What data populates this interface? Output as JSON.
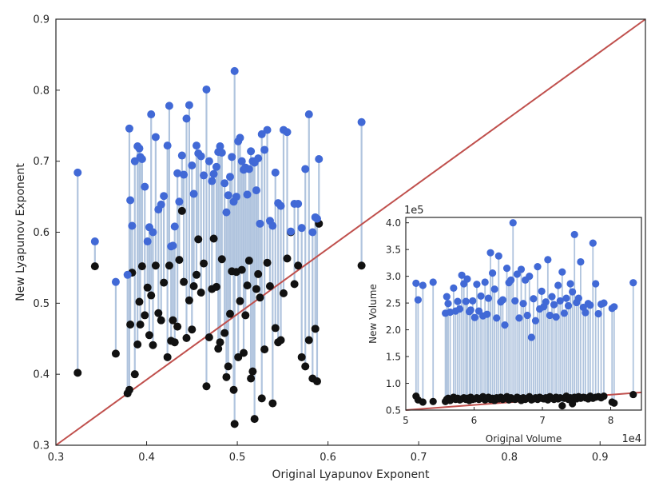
{
  "colors": {
    "new_point": "#4169d6",
    "orig_point": "#111111",
    "stem": "#b0c4de",
    "diagonal": "#c0504d",
    "axis": "#262626"
  },
  "chart_data": [
    {
      "type": "scatter",
      "name": "main",
      "title": "",
      "xlabel": "Original Lyapunov Exponent",
      "ylabel": "New Lyapunov Exponent",
      "xlim": [
        0.3,
        0.95
      ],
      "ylim": [
        0.3,
        0.9
      ],
      "xticks": [
        "0.3",
        "0.4",
        "0.5",
        "0.6",
        "0.7",
        "0.8",
        "0.9"
      ],
      "yticks": [
        "0.3",
        "0.4",
        "0.5",
        "0.6",
        "0.7",
        "0.8",
        "0.9"
      ],
      "xtick_values": [
        0.3,
        0.4,
        0.5,
        0.6,
        0.7,
        0.8,
        0.9
      ],
      "ytick_values": [
        0.3,
        0.4,
        0.5,
        0.6,
        0.7,
        0.8,
        0.9
      ],
      "diagonal": [
        [
          0.3,
          0.3
        ],
        [
          0.95,
          0.9
        ]
      ],
      "series": [
        {
          "name": "Original",
          "color": "#111111"
        },
        {
          "name": "New",
          "color": "#4169d6"
        }
      ],
      "x": [
        0.324,
        0.343,
        0.366,
        0.379,
        0.381,
        0.382,
        0.384,
        0.387,
        0.39,
        0.392,
        0.393,
        0.395,
        0.398,
        0.401,
        0.403,
        0.405,
        0.407,
        0.41,
        0.413,
        0.416,
        0.419,
        0.423,
        0.425,
        0.427,
        0.429,
        0.431,
        0.434,
        0.436,
        0.439,
        0.441,
        0.444,
        0.447,
        0.45,
        0.452,
        0.455,
        0.457,
        0.46,
        0.463,
        0.466,
        0.469,
        0.472,
        0.474,
        0.477,
        0.479,
        0.481,
        0.483,
        0.486,
        0.488,
        0.49,
        0.492,
        0.494,
        0.496,
        0.497,
        0.499,
        0.501,
        0.503,
        0.505,
        0.507,
        0.509,
        0.511,
        0.513,
        0.515,
        0.517,
        0.519,
        0.521,
        0.523,
        0.525,
        0.527,
        0.53,
        0.533,
        0.536,
        0.539,
        0.542,
        0.545,
        0.548,
        0.551,
        0.555,
        0.559,
        0.563,
        0.567,
        0.571,
        0.575,
        0.579,
        0.583,
        0.586,
        0.588,
        0.59,
        0.637
      ],
      "y_original": [
        0.402,
        0.552,
        0.429,
        0.373,
        0.378,
        0.47,
        0.543,
        0.4,
        0.442,
        0.502,
        0.47,
        0.552,
        0.483,
        0.522,
        0.455,
        0.511,
        0.441,
        0.553,
        0.486,
        0.476,
        0.529,
        0.424,
        0.553,
        0.447,
        0.476,
        0.445,
        0.467,
        0.561,
        0.63,
        0.53,
        0.451,
        0.504,
        0.463,
        0.524,
        0.54,
        0.59,
        0.515,
        0.556,
        0.383,
        0.452,
        0.52,
        0.591,
        0.523,
        0.436,
        0.445,
        0.562,
        0.458,
        0.396,
        0.411,
        0.485,
        0.545,
        0.378,
        0.33,
        0.544,
        0.424,
        0.503,
        0.547,
        0.43,
        0.483,
        0.525,
        0.56,
        0.394,
        0.404,
        0.337,
        0.52,
        0.541,
        0.508,
        0.366,
        0.435,
        0.557,
        0.524,
        0.359,
        0.465,
        0.445,
        0.448,
        0.514,
        0.563,
        0.6,
        0.527,
        0.553,
        0.424,
        0.411,
        0.448,
        0.394,
        0.464,
        0.39,
        0.612,
        0.553
      ],
      "y_new": [
        0.684,
        0.587,
        0.53,
        0.54,
        0.746,
        0.645,
        0.609,
        0.7,
        0.721,
        0.718,
        0.706,
        0.703,
        0.664,
        0.587,
        0.607,
        0.766,
        0.6,
        0.734,
        0.632,
        0.639,
        0.651,
        0.722,
        0.778,
        0.58,
        0.581,
        0.608,
        0.683,
        0.643,
        0.708,
        0.681,
        0.76,
        0.779,
        0.694,
        0.654,
        0.722,
        0.711,
        0.707,
        0.68,
        0.801,
        0.7,
        0.672,
        0.682,
        0.692,
        0.713,
        0.721,
        0.712,
        0.669,
        0.628,
        0.652,
        0.678,
        0.706,
        0.643,
        0.827,
        0.65,
        0.728,
        0.733,
        0.7,
        0.688,
        0.691,
        0.653,
        0.689,
        0.714,
        0.7,
        0.698,
        0.659,
        0.704,
        0.612,
        0.738,
        0.716,
        0.744,
        0.616,
        0.609,
        0.684,
        0.641,
        0.637,
        0.744,
        0.741,
        0.601,
        0.64,
        0.64,
        0.606,
        0.689,
        0.766,
        0.6,
        0.621,
        0.619,
        0.703,
        0.755
      ]
    },
    {
      "type": "scatter",
      "name": "inset",
      "title": "",
      "xlabel": "Original Volume",
      "ylabel": "New Volume",
      "x_multiplier": "1e4",
      "y_multiplier": "1e5",
      "xlim": [
        5.0,
        8.45
      ],
      "ylim": [
        0.5,
        4.1
      ],
      "xticks": [
        "5",
        "6",
        "7",
        "8"
      ],
      "yticks": [
        "0.5",
        "1.0",
        "1.5",
        "2.0",
        "2.5",
        "3.0",
        "3.5",
        "4.0"
      ],
      "xtick_values": [
        5,
        6,
        7,
        8
      ],
      "ytick_values": [
        0.5,
        1.0,
        1.5,
        2.0,
        2.5,
        3.0,
        3.5,
        4.0
      ],
      "trend": [
        [
          5.0,
          0.5
        ],
        [
          8.45,
          0.83
        ]
      ],
      "x": [
        5.15,
        5.18,
        5.25,
        5.4,
        5.58,
        5.6,
        5.62,
        5.65,
        5.7,
        5.73,
        5.76,
        5.79,
        5.82,
        5.85,
        5.88,
        5.9,
        5.93,
        5.95,
        5.98,
        6.01,
        6.04,
        6.07,
        6.1,
        6.13,
        6.16,
        6.19,
        6.21,
        6.24,
        6.27,
        6.3,
        6.33,
        6.36,
        6.39,
        6.42,
        6.45,
        6.48,
        6.51,
        6.54,
        6.57,
        6.6,
        6.63,
        6.66,
        6.69,
        6.72,
        6.75,
        6.78,
        6.81,
        6.84,
        6.87,
        6.9,
        6.93,
        6.96,
        6.99,
        7.02,
        7.05,
        7.08,
        7.11,
        7.14,
        7.17,
        7.2,
        7.23,
        7.26,
        7.29,
        7.32,
        7.35,
        7.38,
        7.41,
        7.44,
        7.47,
        7.5,
        7.53,
        7.56,
        7.6,
        7.63,
        7.67,
        7.7,
        7.74,
        7.78,
        7.82,
        7.86,
        7.9,
        8.02,
        8.05,
        8.33
      ],
      "y_original": [
        0.76,
        0.69,
        0.65,
        0.66,
        0.66,
        0.7,
        0.72,
        0.68,
        0.74,
        0.7,
        0.72,
        0.69,
        0.71,
        0.73,
        0.7,
        0.72,
        0.68,
        0.74,
        0.7,
        0.71,
        0.73,
        0.7,
        0.72,
        0.75,
        0.69,
        0.71,
        0.74,
        0.7,
        0.72,
        0.68,
        0.73,
        0.71,
        0.74,
        0.7,
        0.72,
        0.75,
        0.69,
        0.73,
        0.71,
        0.7,
        0.74,
        0.72,
        0.68,
        0.73,
        0.7,
        0.72,
        0.75,
        0.69,
        0.71,
        0.73,
        0.7,
        0.74,
        0.72,
        0.71,
        0.73,
        0.69,
        0.75,
        0.72,
        0.7,
        0.74,
        0.71,
        0.73,
        0.58,
        0.72,
        0.76,
        0.7,
        0.73,
        0.62,
        0.74,
        0.71,
        0.75,
        0.72,
        0.74,
        0.73,
        0.71,
        0.76,
        0.72,
        0.74,
        0.75,
        0.73,
        0.76,
        0.65,
        0.63,
        0.79
      ],
      "y_new": [
        2.87,
        2.56,
        2.83,
        2.89,
        2.31,
        2.62,
        2.49,
        2.33,
        2.78,
        2.35,
        2.53,
        2.39,
        3.02,
        2.86,
        2.53,
        2.95,
        2.34,
        2.37,
        2.54,
        2.23,
        2.85,
        2.35,
        2.63,
        2.26,
        2.89,
        2.29,
        2.59,
        3.44,
        3.06,
        2.76,
        2.22,
        3.38,
        2.52,
        2.56,
        2.09,
        3.15,
        2.88,
        2.93,
        4.0,
        2.54,
        3.04,
        2.22,
        3.13,
        2.49,
        2.93,
        2.27,
        3.0,
        1.86,
        2.58,
        2.17,
        3.18,
        2.39,
        2.72,
        2.43,
        2.52,
        3.31,
        2.27,
        2.62,
        2.47,
        2.24,
        2.83,
        2.54,
        3.08,
        2.31,
        2.59,
        2.45,
        2.86,
        2.71,
        3.78,
        2.51,
        2.59,
        3.27,
        2.42,
        2.32,
        2.49,
        2.46,
        3.62,
        2.86,
        2.3,
        2.48,
        2.5,
        2.4,
        2.43,
        2.88
      ]
    }
  ]
}
